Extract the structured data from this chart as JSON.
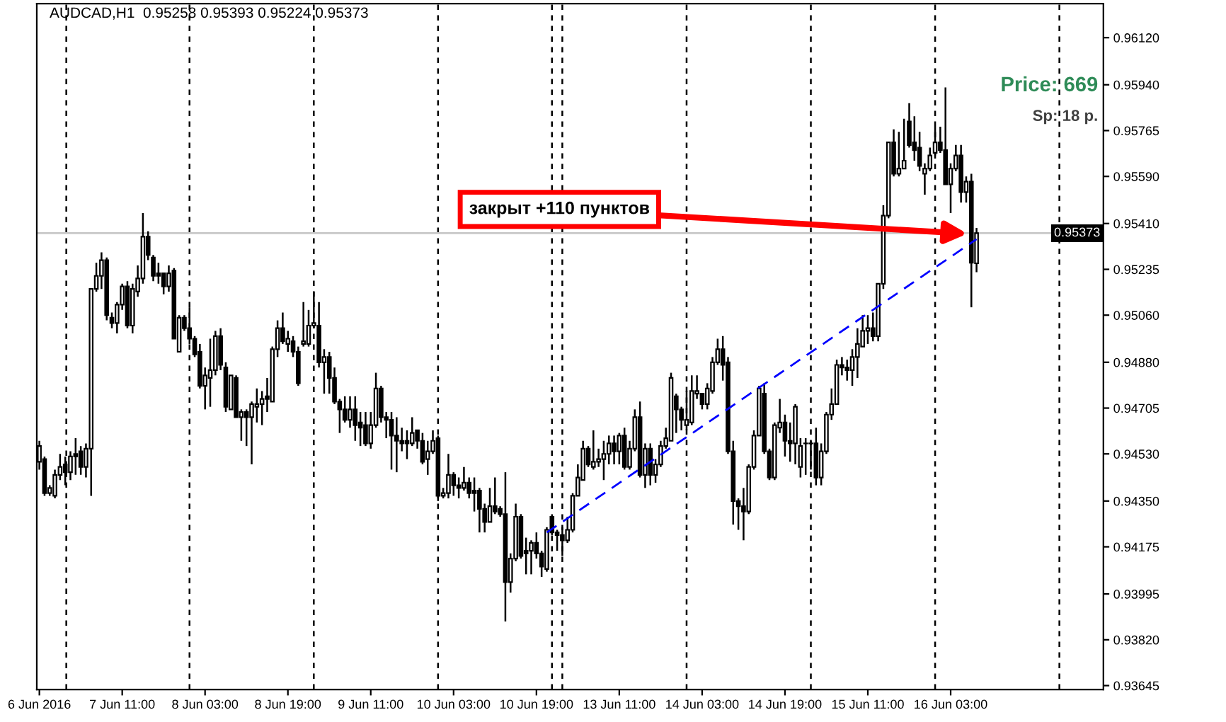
{
  "chart_data": {
    "type": "candlestick",
    "title": "AUDCAD,H1  0.95258 0.95393 0.95224 0.95373",
    "categories": [
      "6 Jun 2016",
      null,
      null,
      null,
      null,
      null,
      null,
      null,
      null,
      null,
      null,
      null,
      null,
      null,
      null,
      null,
      "7 Jun 11:00",
      null,
      null,
      null,
      null,
      null,
      null,
      null,
      null,
      null,
      null,
      null,
      null,
      null,
      null,
      null,
      "8 Jun 03:00",
      null,
      null,
      null,
      null,
      null,
      null,
      null,
      null,
      null,
      null,
      null,
      null,
      null,
      null,
      null,
      "8 Jun 19:00",
      null,
      null,
      null,
      null,
      null,
      null,
      null,
      null,
      null,
      null,
      null,
      null,
      null,
      null,
      null,
      "9 Jun 11:00",
      null,
      null,
      null,
      null,
      null,
      null,
      null,
      null,
      null,
      null,
      null,
      null,
      null,
      null,
      null,
      "10 Jun 03:00",
      null,
      null,
      null,
      null,
      null,
      null,
      null,
      null,
      null,
      null,
      null,
      null,
      null,
      null,
      null,
      "10 Jun 19:00",
      null,
      null,
      null,
      null,
      null,
      null,
      null,
      null,
      null,
      null,
      null,
      null,
      null,
      null,
      null,
      "13 Jun 11:00",
      null,
      null,
      null,
      null,
      null,
      null,
      null,
      null,
      null,
      null,
      null,
      null,
      null,
      null,
      null,
      "14 Jun 03:00",
      null,
      null,
      null,
      null,
      null,
      null,
      null,
      null,
      null,
      null,
      null,
      null,
      null,
      null,
      null,
      "14 Jun 19:00",
      null,
      null,
      null,
      null,
      null,
      null,
      null,
      null,
      null,
      null,
      null,
      null,
      null,
      null,
      null,
      "15 Jun 11:00",
      null,
      null,
      null,
      null,
      null,
      null,
      null,
      null,
      null,
      null,
      null,
      null,
      null,
      null,
      null,
      "16 Jun 03:00",
      null,
      null,
      null,
      null,
      null,
      null,
      null,
      null,
      null,
      null,
      null,
      null,
      null,
      null,
      null,
      null,
      null,
      null,
      null,
      null,
      null,
      null,
      null,
      null,
      null,
      null,
      null,
      null,
      null
    ],
    "ohlc": [
      [
        0.945,
        0.9458,
        0.9447,
        0.9456
      ],
      [
        0.9451,
        0.9452,
        0.9437,
        0.9438
      ],
      [
        0.9438,
        0.9441,
        0.9437,
        0.944
      ],
      [
        0.9437,
        0.9447,
        0.9436,
        0.9445
      ],
      [
        0.9445,
        0.9453,
        0.9443,
        0.9448
      ],
      [
        0.9449,
        0.9452,
        0.9441,
        0.9446
      ],
      [
        0.9446,
        0.9454,
        0.9443,
        0.9452
      ],
      [
        0.9453,
        0.9459,
        0.9445,
        0.9452
      ],
      [
        0.9454,
        0.9456,
        0.9445,
        0.9448
      ],
      [
        0.9448,
        0.9457,
        0.9444,
        0.9455
      ],
      [
        0.9455,
        0.9516,
        0.9437,
        0.9516
      ],
      [
        0.9516,
        0.9526,
        0.9515,
        0.9521
      ],
      [
        0.9521,
        0.953,
        0.9516,
        0.9527
      ],
      [
        0.9527,
        0.9528,
        0.9504,
        0.9506
      ],
      [
        0.9505,
        0.9507,
        0.9501,
        0.9503
      ],
      [
        0.9503,
        0.9511,
        0.9499,
        0.951
      ],
      [
        0.951,
        0.9518,
        0.9508,
        0.9517
      ],
      [
        0.9517,
        0.9519,
        0.9501,
        0.9502
      ],
      [
        0.9502,
        0.9518,
        0.9499,
        0.9516
      ],
      [
        0.9515,
        0.9525,
        0.9513,
        0.952
      ],
      [
        0.952,
        0.9545,
        0.9518,
        0.9536
      ],
      [
        0.9536,
        0.9538,
        0.9527,
        0.9529
      ],
      [
        0.9528,
        0.9529,
        0.9519,
        0.9521
      ],
      [
        0.9522,
        0.9526,
        0.9518,
        0.9521
      ],
      [
        0.9522,
        0.9522,
        0.9514,
        0.9517
      ],
      [
        0.9517,
        0.9525,
        0.9515,
        0.9522
      ],
      [
        0.9523,
        0.9524,
        0.9497,
        0.9497
      ],
      [
        0.9492,
        0.9506,
        0.9492,
        0.9505
      ],
      [
        0.9505,
        0.9506,
        0.95,
        0.9501
      ],
      [
        0.9501,
        0.9509,
        0.9495,
        0.9497
      ],
      [
        0.9497,
        0.9498,
        0.949,
        0.9491
      ],
      [
        0.9492,
        0.9495,
        0.9478,
        0.9479
      ],
      [
        0.9479,
        0.9486,
        0.947,
        0.9483
      ],
      [
        0.9482,
        0.9497,
        0.9471,
        0.9485
      ],
      [
        0.9485,
        0.95,
        0.9483,
        0.9498
      ],
      [
        0.9498,
        0.9501,
        0.9485,
        0.9487
      ],
      [
        0.9486,
        0.9488,
        0.9469,
        0.9471
      ],
      [
        0.947,
        0.9483,
        0.947,
        0.9483
      ],
      [
        0.9482,
        0.9483,
        0.9467,
        0.9467
      ],
      [
        0.9467,
        0.947,
        0.9458,
        0.9469
      ],
      [
        0.9469,
        0.947,
        0.9456,
        0.9467
      ],
      [
        0.9467,
        0.9473,
        0.9449,
        0.9472
      ],
      [
        0.9471,
        0.9478,
        0.9465,
        0.9472
      ],
      [
        0.9472,
        0.9477,
        0.9464,
        0.9474
      ],
      [
        0.9475,
        0.9482,
        0.9469,
        0.9474
      ],
      [
        0.9473,
        0.9494,
        0.9473,
        0.9493
      ],
      [
        0.9493,
        0.9504,
        0.949,
        0.9501
      ],
      [
        0.9501,
        0.9507,
        0.9495,
        0.9496
      ],
      [
        0.9495,
        0.95,
        0.9492,
        0.9497
      ],
      [
        0.9496,
        0.9498,
        0.949,
        0.9492
      ],
      [
        0.9492,
        0.9494,
        0.9479,
        0.948
      ],
      [
        0.9495,
        0.9511,
        0.9494,
        0.9496
      ],
      [
        0.9495,
        0.9508,
        0.9494,
        0.9502
      ],
      [
        0.9502,
        0.9515,
        0.9501,
        0.9503
      ],
      [
        0.9502,
        0.9511,
        0.9486,
        0.9488
      ],
      [
        0.9488,
        0.9493,
        0.9476,
        0.949
      ],
      [
        0.949,
        0.9492,
        0.9476,
        0.9482
      ],
      [
        0.9482,
        0.9486,
        0.9472,
        0.9473
      ],
      [
        0.9473,
        0.9474,
        0.9461,
        0.947
      ],
      [
        0.947,
        0.9475,
        0.9465,
        0.9466
      ],
      [
        0.9466,
        0.9475,
        0.9463,
        0.947
      ],
      [
        0.947,
        0.9475,
        0.9458,
        0.9464
      ],
      [
        0.9465,
        0.9469,
        0.9456,
        0.9463
      ],
      [
        0.9464,
        0.9469,
        0.9456,
        0.9457
      ],
      [
        0.9457,
        0.9469,
        0.9455,
        0.9464
      ],
      [
        0.9464,
        0.9484,
        0.9463,
        0.9478
      ],
      [
        0.9478,
        0.9479,
        0.9465,
        0.9467
      ],
      [
        0.9467,
        0.9469,
        0.9459,
        0.9466
      ],
      [
        0.9466,
        0.9469,
        0.9447,
        0.946
      ],
      [
        0.946,
        0.9467,
        0.9446,
        0.9458
      ],
      [
        0.9458,
        0.9463,
        0.9454,
        0.9457
      ],
      [
        0.9458,
        0.9462,
        0.9451,
        0.9457
      ],
      [
        0.9457,
        0.9467,
        0.9456,
        0.9461
      ],
      [
        0.9462,
        0.9462,
        0.9455,
        0.9458
      ],
      [
        0.9458,
        0.9461,
        0.9449,
        0.945
      ],
      [
        0.9451,
        0.9458,
        0.9445,
        0.9454
      ],
      [
        0.9454,
        0.9462,
        0.9453,
        0.9458
      ],
      [
        0.9459,
        0.946,
        0.9435,
        0.9437
      ],
      [
        0.9437,
        0.944,
        0.9436,
        0.9438
      ],
      [
        0.9438,
        0.9453,
        0.9436,
        0.9445
      ],
      [
        0.9445,
        0.9446,
        0.9437,
        0.9441
      ],
      [
        0.9441,
        0.9444,
        0.9436,
        0.944
      ],
      [
        0.944,
        0.9448,
        0.9439,
        0.9442
      ],
      [
        0.9442,
        0.9444,
        0.9436,
        0.9438
      ],
      [
        0.9439,
        0.9444,
        0.9431,
        0.9438
      ],
      [
        0.9439,
        0.944,
        0.9423,
        0.9432
      ],
      [
        0.9432,
        0.9434,
        0.9423,
        0.9427
      ],
      [
        0.9427,
        0.944,
        0.9427,
        0.9433
      ],
      [
        0.9433,
        0.9444,
        0.943,
        0.9431
      ],
      [
        0.9432,
        0.9433,
        0.9429,
        0.943
      ],
      [
        0.943,
        0.9446,
        0.9389,
        0.9404
      ],
      [
        0.9404,
        0.9415,
        0.94,
        0.9413
      ],
      [
        0.9413,
        0.9434,
        0.9412,
        0.9429
      ],
      [
        0.9429,
        0.943,
        0.9413,
        0.9414
      ],
      [
        0.9416,
        0.9421,
        0.9407,
        0.9415
      ],
      [
        0.9416,
        0.942,
        0.9407,
        0.9419
      ],
      [
        0.9419,
        0.9423,
        0.9413,
        0.9415
      ],
      [
        0.9415,
        0.9416,
        0.9406,
        0.941
      ],
      [
        0.9409,
        0.9425,
        0.9408,
        0.9424
      ],
      [
        0.9429,
        0.9429,
        0.9422,
        0.9423
      ],
      [
        0.9423,
        0.9424,
        0.9416,
        0.9422
      ],
      [
        0.9422,
        0.9425,
        0.9414,
        0.942
      ],
      [
        0.942,
        0.9429,
        0.9419,
        0.9424
      ],
      [
        0.9424,
        0.9438,
        0.9423,
        0.9437
      ],
      [
        0.9437,
        0.9449,
        0.9437,
        0.9444
      ],
      [
        0.9443,
        0.9458,
        0.9443,
        0.9455
      ],
      [
        0.9455,
        0.9456,
        0.9448,
        0.9449
      ],
      [
        0.9448,
        0.9462,
        0.9447,
        0.945
      ],
      [
        0.945,
        0.9455,
        0.9448,
        0.9451
      ],
      [
        0.9451,
        0.9458,
        0.9443,
        0.9453
      ],
      [
        0.9453,
        0.946,
        0.9449,
        0.9457
      ],
      [
        0.9457,
        0.946,
        0.9449,
        0.9454
      ],
      [
        0.9454,
        0.9461,
        0.9449,
        0.946
      ],
      [
        0.946,
        0.9463,
        0.9447,
        0.9448
      ],
      [
        0.9448,
        0.9458,
        0.9447,
        0.9455
      ],
      [
        0.9455,
        0.947,
        0.9454,
        0.9467
      ],
      [
        0.9467,
        0.9473,
        0.9444,
        0.9445
      ],
      [
        0.9445,
        0.9457,
        0.944,
        0.9455
      ],
      [
        0.9455,
        0.9457,
        0.9441,
        0.9445
      ],
      [
        0.9445,
        0.9451,
        0.9442,
        0.9449
      ],
      [
        0.9449,
        0.9458,
        0.9448,
        0.9456
      ],
      [
        0.9456,
        0.9463,
        0.9455,
        0.9459
      ],
      [
        0.9458,
        0.9484,
        0.9458,
        0.9482
      ],
      [
        0.9475,
        0.9476,
        0.9461,
        0.947
      ],
      [
        0.947,
        0.9471,
        0.9462,
        0.9466
      ],
      [
        0.9464,
        0.9477,
        0.9462,
        0.9466
      ],
      [
        0.9465,
        0.9483,
        0.9464,
        0.9477
      ],
      [
        0.9476,
        0.9483,
        0.9474,
        0.9477
      ],
      [
        0.9476,
        0.9476,
        0.947,
        0.9472
      ],
      [
        0.9472,
        0.948,
        0.947,
        0.9478
      ],
      [
        0.9477,
        0.949,
        0.9476,
        0.9488
      ],
      [
        0.9488,
        0.9497,
        0.9487,
        0.9493
      ],
      [
        0.9493,
        0.9498,
        0.9481,
        0.9487
      ],
      [
        0.9488,
        0.949,
        0.9453,
        0.9454
      ],
      [
        0.9454,
        0.9458,
        0.9426,
        0.9435
      ],
      [
        0.9435,
        0.9436,
        0.9424,
        0.9433
      ],
      [
        0.9433,
        0.944,
        0.942,
        0.9431
      ],
      [
        0.9431,
        0.9449,
        0.943,
        0.9448
      ],
      [
        0.9448,
        0.9462,
        0.9447,
        0.946
      ],
      [
        0.946,
        0.9479,
        0.946,
        0.9478
      ],
      [
        0.9476,
        0.948,
        0.9453,
        0.9454
      ],
      [
        0.9454,
        0.9455,
        0.9443,
        0.9444
      ],
      [
        0.9444,
        0.9465,
        0.9443,
        0.9464
      ],
      [
        0.9463,
        0.9474,
        0.9461,
        0.9465
      ],
      [
        0.9465,
        0.9468,
        0.9452,
        0.9458
      ],
      [
        0.9458,
        0.9465,
        0.945,
        0.9457
      ],
      [
        0.9457,
        0.9472,
        0.9449,
        0.9471
      ],
      [
        0.9448,
        0.9459,
        0.9444,
        0.9456
      ],
      [
        0.9457,
        0.9459,
        0.9445,
        0.9457
      ],
      [
        0.9457,
        0.9458,
        0.9447,
        0.9457
      ],
      [
        0.9457,
        0.9463,
        0.9441,
        0.9444
      ],
      [
        0.9444,
        0.9457,
        0.9441,
        0.9454
      ],
      [
        0.9454,
        0.9469,
        0.9453,
        0.9468
      ],
      [
        0.9468,
        0.9478,
        0.9466,
        0.9472
      ],
      [
        0.9472,
        0.9489,
        0.9472,
        0.9487
      ],
      [
        0.9487,
        0.949,
        0.9483,
        0.9486
      ],
      [
        0.9486,
        0.9489,
        0.9481,
        0.9485
      ],
      [
        0.9485,
        0.9493,
        0.9479,
        0.949
      ],
      [
        0.949,
        0.9501,
        0.9482,
        0.9495
      ],
      [
        0.9494,
        0.9506,
        0.9494,
        0.95
      ],
      [
        0.95,
        0.9506,
        0.9495,
        0.9501
      ],
      [
        0.9501,
        0.9507,
        0.9496,
        0.9498
      ],
      [
        0.9498,
        0.9518,
        0.9496,
        0.9518
      ],
      [
        0.9518,
        0.9548,
        0.9516,
        0.9544
      ],
      [
        0.9544,
        0.9572,
        0.9543,
        0.9572
      ],
      [
        0.9572,
        0.9577,
        0.9559,
        0.956
      ],
      [
        0.956,
        0.9576,
        0.9559,
        0.9562
      ],
      [
        0.9562,
        0.9581,
        0.9562,
        0.9565
      ],
      [
        0.958,
        0.9587,
        0.957,
        0.9571
      ],
      [
        0.9572,
        0.9582,
        0.9565,
        0.9569
      ],
      [
        0.957,
        0.9576,
        0.9561,
        0.9563
      ],
      [
        0.956,
        0.9564,
        0.9552,
        0.9562
      ],
      [
        0.9562,
        0.957,
        0.9561,
        0.9567
      ],
      [
        0.9568,
        0.9578,
        0.9567,
        0.9572
      ],
      [
        0.9572,
        0.9578,
        0.9568,
        0.9569
      ],
      [
        0.9569,
        0.9593,
        0.9556,
        0.9556
      ],
      [
        0.9556,
        0.9564,
        0.9545,
        0.9562
      ],
      [
        0.9562,
        0.9571,
        0.9561,
        0.9567
      ],
      [
        0.9567,
        0.9571,
        0.9549,
        0.9553
      ],
      [
        0.9553,
        0.9559,
        0.9549,
        0.9557
      ],
      [
        0.9557,
        0.956,
        0.9509,
        0.9526
      ],
      [
        0.95258,
        0.95393,
        0.95224,
        0.95373
      ],
      null,
      null,
      null,
      null,
      null,
      null,
      null,
      null,
      null,
      null,
      null,
      null,
      null,
      null,
      null,
      null,
      null,
      null,
      null,
      null,
      null,
      null,
      null,
      null
    ],
    "ylim": [
      0.9363,
      0.9625
    ],
    "yticks": [
      {
        "value": 0.9612,
        "label": "0.96120"
      },
      {
        "value": 0.9594,
        "label": "0.95940"
      },
      {
        "value": 0.95765,
        "label": "0.95765"
      },
      {
        "value": 0.9559,
        "label": "0.95590"
      },
      {
        "value": 0.9541,
        "label": "0.95410"
      },
      {
        "value": 0.95235,
        "label": "0.95235"
      },
      {
        "value": 0.9506,
        "label": "0.95060"
      },
      {
        "value": 0.9488,
        "label": "0.94880"
      },
      {
        "value": 0.94705,
        "label": "0.94705"
      },
      {
        "value": 0.9453,
        "label": "0.94530"
      },
      {
        "value": 0.9435,
        "label": "0.94350"
      },
      {
        "value": 0.94175,
        "label": "0.94175"
      },
      {
        "value": 0.93995,
        "label": "0.93995"
      },
      {
        "value": 0.9382,
        "label": "0.93820"
      },
      {
        "value": 0.93645,
        "label": "0.93645"
      }
    ],
    "series": [
      {
        "type": "line",
        "values": [
          null,
          null,
          null,
          null,
          null,
          null,
          null,
          null,
          null,
          null,
          null,
          null,
          null,
          null,
          null,
          null,
          null,
          null,
          null,
          null,
          null,
          null,
          null,
          null,
          null,
          null,
          null,
          null,
          null,
          null,
          null,
          null,
          null,
          null,
          null,
          null,
          null,
          null,
          null,
          null,
          null,
          null,
          null,
          null,
          null,
          null,
          null,
          null,
          null,
          null,
          null,
          null,
          null,
          null,
          null,
          null,
          null,
          null,
          null,
          null,
          null,
          null,
          null,
          null,
          null,
          null,
          null,
          null,
          null,
          null,
          null,
          null,
          null,
          null,
          null,
          null,
          null,
          null,
          null,
          null,
          null,
          null,
          null,
          null,
          null,
          null,
          null,
          null,
          null,
          null,
          null,
          null,
          null,
          null,
          null,
          null,
          null,
          null,
          0.9423,
          null,
          null,
          null,
          null,
          null,
          null,
          null,
          null,
          null,
          null,
          null,
          null,
          null,
          null,
          null,
          null,
          null,
          null,
          null,
          null,
          null,
          null,
          null,
          null,
          null,
          null,
          null,
          null,
          null,
          null,
          null,
          null,
          null,
          null,
          null,
          null,
          null,
          null,
          null,
          null,
          null,
          null,
          null,
          null,
          null,
          null,
          null,
          null,
          null,
          null,
          null,
          null,
          null,
          null,
          null,
          null,
          null,
          null,
          null,
          null,
          null,
          null,
          null,
          null,
          null,
          null,
          null,
          null,
          null,
          null,
          null,
          null,
          null,
          null,
          null,
          null,
          null,
          null,
          null,
          null,
          null,
          null,
          0.9535,
          null,
          null,
          null,
          null,
          null,
          null,
          null,
          null,
          null,
          null,
          null,
          null,
          null,
          null,
          null,
          null,
          null,
          null,
          null,
          null,
          null,
          null,
          null,
          null
        ],
        "color": "#0000ff",
        "line_style": "dashed"
      }
    ],
    "ref_lines": [
      {
        "axis": "y",
        "value": 0.95373,
        "label": "0.95373",
        "color": "#c8c8c8",
        "line_style": "solid"
      }
    ],
    "annotations": [
      {
        "text": "закрыт +110 пунктов",
        "y": 0.9537
      },
      "Price: 669",
      "Sp: 18 p."
    ],
    "grid": false,
    "legend": false
  }
}
